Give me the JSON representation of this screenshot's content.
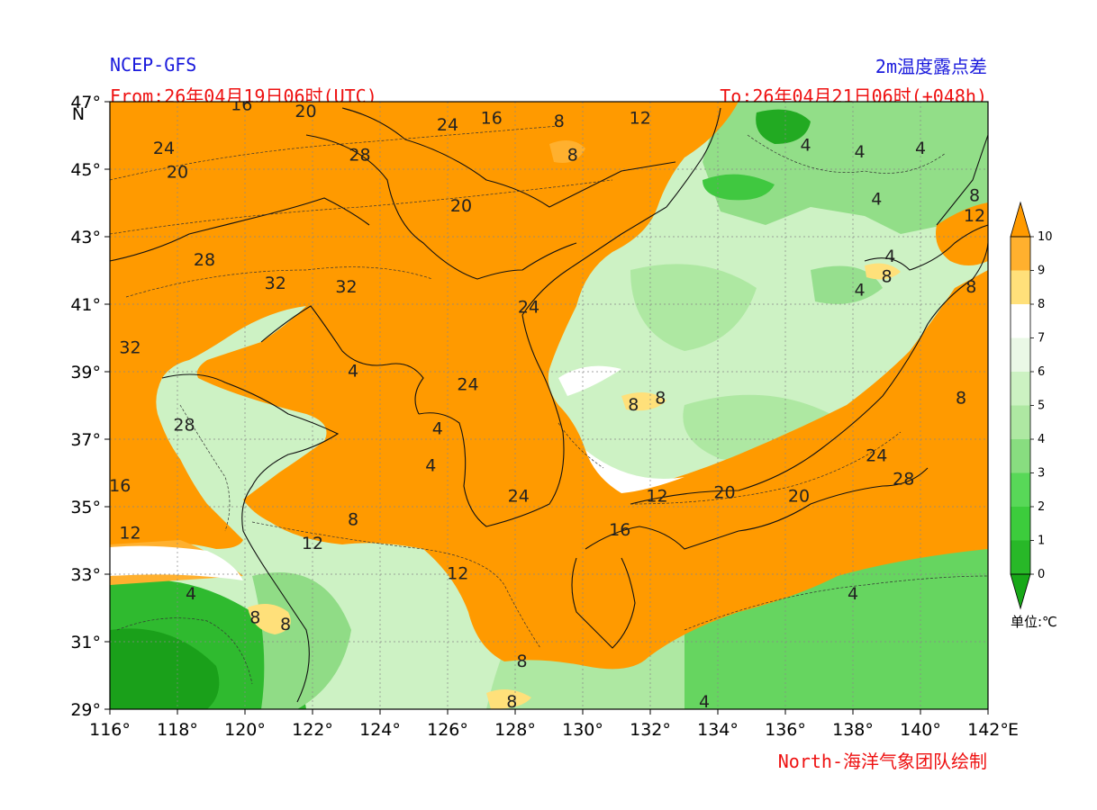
{
  "header": {
    "model": "NCEP-GFS",
    "variable": "2m温度露点差",
    "from_label": "From:26年04月19日06时(UTC)",
    "to_label": "To:26年04月21日06时(+048h)"
  },
  "footer": {
    "credit": "North-海洋气象团队绘制"
  },
  "axes": {
    "lon_ticks": [
      "116°",
      "118°",
      "120°",
      "122°",
      "124°",
      "126°",
      "128°",
      "130°",
      "132°",
      "134°",
      "136°",
      "138°",
      "140°",
      "142°"
    ],
    "lat_ticks": [
      "47°",
      "45°",
      "43°",
      "41°",
      "39°",
      "37°",
      "35°",
      "33°",
      "31°",
      "29°"
    ],
    "lon_unit": "E",
    "lat_unit": "N",
    "lon_range": [
      116,
      142
    ],
    "lat_range": [
      29,
      47
    ]
  },
  "colorbar": {
    "levels": [
      "0",
      "1",
      "2",
      "3",
      "4",
      "5",
      "6",
      "7",
      "8",
      "9",
      "10"
    ],
    "colors": [
      "#18a818",
      "#28b828",
      "#3ccc3c",
      "#58d858",
      "#88dd80",
      "#aee8a2",
      "#ccf2c2",
      "#eaf8e6",
      "#ffffff",
      "#ffe07a",
      "#ffb02e",
      "#ff9a00"
    ],
    "unit": "单位:℃"
  },
  "contour_labels": [
    {
      "text": "16",
      "lon": 119.9,
      "lat": 46.9
    },
    {
      "text": "20",
      "lon": 121.8,
      "lat": 46.7
    },
    {
      "text": "24",
      "lon": 126.0,
      "lat": 46.3
    },
    {
      "text": "16",
      "lon": 127.3,
      "lat": 46.5
    },
    {
      "text": "8",
      "lon": 129.3,
      "lat": 46.4
    },
    {
      "text": "12",
      "lon": 131.7,
      "lat": 46.5
    },
    {
      "text": "24",
      "lon": 117.6,
      "lat": 45.6
    },
    {
      "text": "20",
      "lon": 118.0,
      "lat": 44.9
    },
    {
      "text": "28",
      "lon": 123.4,
      "lat": 45.4
    },
    {
      "text": "8",
      "lon": 129.7,
      "lat": 45.4
    },
    {
      "text": "4",
      "lon": 136.6,
      "lat": 45.7
    },
    {
      "text": "4",
      "lon": 138.2,
      "lat": 45.5
    },
    {
      "text": "4",
      "lon": 140.0,
      "lat": 45.6
    },
    {
      "text": "20",
      "lon": 126.4,
      "lat": 43.9
    },
    {
      "text": "4",
      "lon": 138.7,
      "lat": 44.1
    },
    {
      "text": "8",
      "lon": 141.6,
      "lat": 44.2
    },
    {
      "text": "12",
      "lon": 141.6,
      "lat": 43.6
    },
    {
      "text": "28",
      "lon": 118.8,
      "lat": 42.3
    },
    {
      "text": "32",
      "lon": 120.9,
      "lat": 41.6
    },
    {
      "text": "32",
      "lon": 123.0,
      "lat": 41.5
    },
    {
      "text": "4",
      "lon": 139.1,
      "lat": 42.4
    },
    {
      "text": "8",
      "lon": 139.0,
      "lat": 41.8
    },
    {
      "text": "8",
      "lon": 141.5,
      "lat": 41.5
    },
    {
      "text": "4",
      "lon": 138.2,
      "lat": 41.4
    },
    {
      "text": "24",
      "lon": 128.4,
      "lat": 40.9
    },
    {
      "text": "32",
      "lon": 116.6,
      "lat": 39.7
    },
    {
      "text": "4",
      "lon": 123.2,
      "lat": 39.0
    },
    {
      "text": "24",
      "lon": 126.6,
      "lat": 38.6
    },
    {
      "text": "8",
      "lon": 131.5,
      "lat": 38.0
    },
    {
      "text": "8",
      "lon": 132.3,
      "lat": 38.2
    },
    {
      "text": "8",
      "lon": 141.2,
      "lat": 38.2
    },
    {
      "text": "28",
      "lon": 118.2,
      "lat": 37.4
    },
    {
      "text": "4",
      "lon": 125.7,
      "lat": 37.3
    },
    {
      "text": "4",
      "lon": 125.5,
      "lat": 36.2
    },
    {
      "text": "24",
      "lon": 138.7,
      "lat": 36.5
    },
    {
      "text": "28",
      "lon": 139.5,
      "lat": 35.8
    },
    {
      "text": "16",
      "lon": 116.3,
      "lat": 35.6
    },
    {
      "text": "24",
      "lon": 128.1,
      "lat": 35.3
    },
    {
      "text": "12",
      "lon": 132.2,
      "lat": 35.3
    },
    {
      "text": "20",
      "lon": 134.2,
      "lat": 35.4
    },
    {
      "text": "20",
      "lon": 136.4,
      "lat": 35.3
    },
    {
      "text": "8",
      "lon": 123.2,
      "lat": 34.6
    },
    {
      "text": "12",
      "lon": 116.6,
      "lat": 34.2
    },
    {
      "text": "12",
      "lon": 122.0,
      "lat": 33.9
    },
    {
      "text": "16",
      "lon": 131.1,
      "lat": 34.3
    },
    {
      "text": "12",
      "lon": 126.3,
      "lat": 33.0
    },
    {
      "text": "4",
      "lon": 138.0,
      "lat": 32.4
    },
    {
      "text": "4",
      "lon": 118.4,
      "lat": 32.4
    },
    {
      "text": "8",
      "lon": 120.3,
      "lat": 31.7
    },
    {
      "text": "8",
      "lon": 121.2,
      "lat": 31.5
    },
    {
      "text": "8",
      "lon": 128.2,
      "lat": 30.4
    },
    {
      "text": "8",
      "lon": 127.9,
      "lat": 29.2
    },
    {
      "text": "4",
      "lon": 133.6,
      "lat": 29.2
    }
  ]
}
